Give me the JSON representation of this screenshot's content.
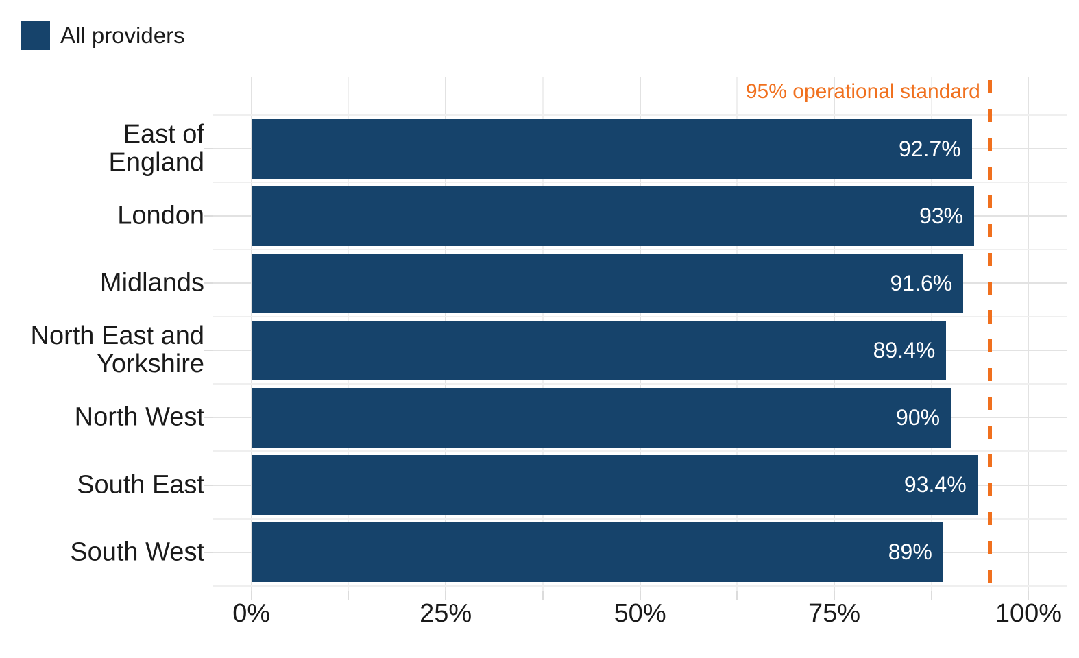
{
  "legend": {
    "label": "All providers"
  },
  "chart_data": {
    "type": "bar",
    "orientation": "horizontal",
    "title": "",
    "categories": [
      "East of England",
      "London",
      "Midlands",
      "North East and Yorkshire",
      "North West",
      "South East",
      "South West"
    ],
    "display_labels": [
      "East of\nEngland",
      "London",
      "Midlands",
      "North East and\nYorkshire",
      "North West",
      "South East",
      "South West"
    ],
    "series": [
      {
        "name": "All providers",
        "values": [
          92.7,
          93,
          91.6,
          89.4,
          90,
          93.4,
          89
        ],
        "value_labels": [
          "92.7%",
          "93%",
          "91.6%",
          "89.4%",
          "90%",
          "93.4%",
          "89%"
        ]
      }
    ],
    "x_axis": {
      "range": [
        0,
        100
      ],
      "unit": "%",
      "major_ticks": [
        0,
        25,
        50,
        75,
        100
      ],
      "tick_labels": [
        "0%",
        "25%",
        "50%",
        "75%",
        "100%"
      ],
      "minor_ticks": [
        12.5,
        37.5,
        62.5,
        87.5
      ]
    },
    "reference_line": {
      "value": 95,
      "label": "95% operational standard",
      "style": "dashed"
    },
    "grid": true,
    "legend_position": "top-left",
    "colors": {
      "bar": "#16436b",
      "reference": "#f0701e",
      "grid_major": "#e2e2e2",
      "grid_minor": "#efefef",
      "tick": "#dcdcdc",
      "text": "#1a1a1a",
      "bar_label_text": "#ffffff"
    }
  }
}
